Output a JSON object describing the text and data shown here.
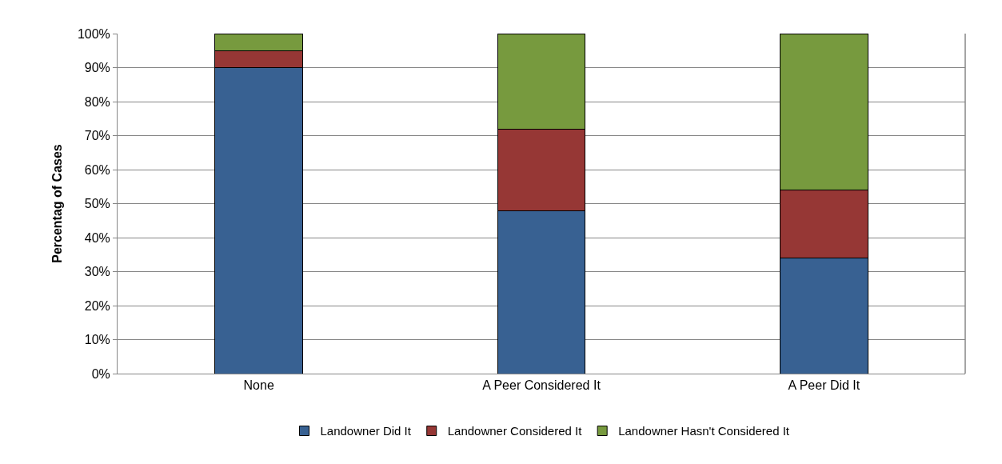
{
  "chart_data": {
    "type": "bar",
    "stacked": true,
    "ylabel": "Percentag of Cases",
    "categories": [
      "None",
      "A Peer Considered It",
      "A Peer Did It"
    ],
    "series": [
      {
        "name": "Landowner Did It",
        "color": "#386192",
        "values": [
          90,
          48,
          34
        ]
      },
      {
        "name": "Landowner Considered It",
        "color": "#963735",
        "values": [
          5,
          24,
          20
        ]
      },
      {
        "name": "Landowner Hasn't Considered It",
        "color": "#779a3e",
        "values": [
          5,
          28,
          46
        ]
      }
    ],
    "ylim": [
      0,
      100
    ],
    "yticks": [
      {
        "value": 0,
        "label": "0%"
      },
      {
        "value": 10,
        "label": "10%"
      },
      {
        "value": 20,
        "label": "20%"
      },
      {
        "value": 30,
        "label": "30%"
      },
      {
        "value": 40,
        "label": "40%"
      },
      {
        "value": 50,
        "label": "50%"
      },
      {
        "value": 60,
        "label": "60%"
      },
      {
        "value": 70,
        "label": "70%"
      },
      {
        "value": 80,
        "label": "80%"
      },
      {
        "value": 90,
        "label": "90%"
      },
      {
        "value": 100,
        "label": "100%"
      }
    ],
    "grid": "y",
    "legend": "bottom"
  }
}
